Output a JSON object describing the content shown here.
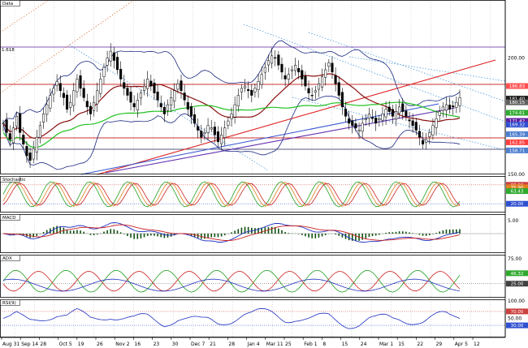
{
  "chart_data": {
    "type": "candlestick",
    "panels": [
      {
        "id": "price",
        "title": "Data",
        "ylim": [
          150,
          225
        ],
        "ticks": [
          200.0,
          150.0
        ],
        "hline_label": "1.618",
        "box_labels": [
          {
            "text": "186.83",
            "color": "#ff5050",
            "v": 188.0
          },
          {
            "text": "181.40",
            "color": "#202020",
            "v": 182.6
          },
          {
            "text": "180.15",
            "color": "#606060",
            "v": 181.0
          },
          {
            "text": "174.61",
            "color": "#2faa2f",
            "v": 176.5
          },
          {
            "text": "171.42",
            "color": "#6020a0",
            "v": 173.0
          },
          {
            "text": "169.32",
            "color": "#3050d0",
            "v": 171.4
          },
          {
            "text": "165.39",
            "color": "#5080d0",
            "v": 167.3
          },
          {
            "text": "162.85",
            "color": "#ff4040",
            "v": 163.8
          },
          {
            "text": "158.71",
            "color": "#5080d0",
            "v": 160.3
          }
        ]
      },
      {
        "id": "stochastic",
        "title": "Stochastic",
        "ticks": [],
        "box_labels": [
          {
            "text": "80.00",
            "color": "#cc4040",
            "v": 80
          },
          {
            "text": "75.90",
            "color": "#e08020",
            "v": 72
          },
          {
            "text": "63.43",
            "color": "#2faa2f",
            "v": 60
          },
          {
            "text": "20.00",
            "color": "#3050d0",
            "v": 20
          }
        ]
      },
      {
        "id": "macd",
        "title": "MACD",
        "ticks": [
          5.0
        ],
        "box_labels": []
      },
      {
        "id": "adx",
        "title": "ADX",
        "ticks": [
          75.0,
          25.0
        ],
        "box_labels": [
          {
            "text": "46.32",
            "color": "#2faa2f",
            "v": 46
          },
          {
            "text": "25.00",
            "color": "#404040",
            "v": 25
          }
        ]
      },
      {
        "id": "rsi",
        "title": "RSI(9)",
        "ticks": [
          100.0,
          50.0
        ],
        "box_labels": [
          {
            "text": "70.00",
            "color": "#cc4040",
            "v": 70
          },
          {
            "text": "30.00",
            "color": "#3050d0",
            "v": 30
          }
        ]
      }
    ],
    "x_labels": [
      "Aug 31",
      "Sep 14",
      "28",
      "Oct 5",
      "19",
      "26",
      "Nov 2",
      "16",
      "23",
      "30",
      "Dec 7",
      "21",
      "28",
      "Jan 4",
      "Mar 11",
      "25",
      "Feb 1",
      "8",
      "15",
      "24",
      "Mar 1",
      "15",
      "22",
      "29",
      "Apr 5",
      "12"
    ],
    "closes": [
      172,
      168,
      165,
      170,
      175,
      168,
      163,
      158,
      156,
      161,
      166,
      171,
      176,
      180,
      184,
      187,
      190,
      186,
      183,
      178,
      181,
      186,
      191,
      187,
      183,
      179,
      176,
      181,
      186,
      191,
      196,
      200,
      203,
      199,
      195,
      191,
      187,
      184,
      181,
      179,
      182,
      185,
      188,
      191,
      188,
      185,
      182,
      179,
      176,
      180,
      183,
      186,
      189,
      186,
      182,
      178,
      175,
      172,
      169,
      166,
      168,
      171,
      170,
      167,
      164,
      167,
      170,
      173,
      176,
      180,
      184,
      187,
      188,
      186,
      184,
      187,
      190,
      193,
      196,
      199,
      201,
      200,
      197,
      194,
      191,
      193,
      195,
      197,
      194,
      191,
      188,
      185,
      184,
      186,
      189,
      192,
      195,
      198,
      194,
      189,
      184,
      179,
      175,
      172,
      171,
      170,
      169,
      172,
      174,
      176,
      174,
      172,
      174,
      176,
      178,
      177,
      175,
      177,
      179,
      177,
      175,
      173,
      171,
      169,
      166,
      163,
      165,
      168,
      171,
      174,
      177,
      179,
      180,
      178,
      179,
      181,
      183
    ]
  }
}
